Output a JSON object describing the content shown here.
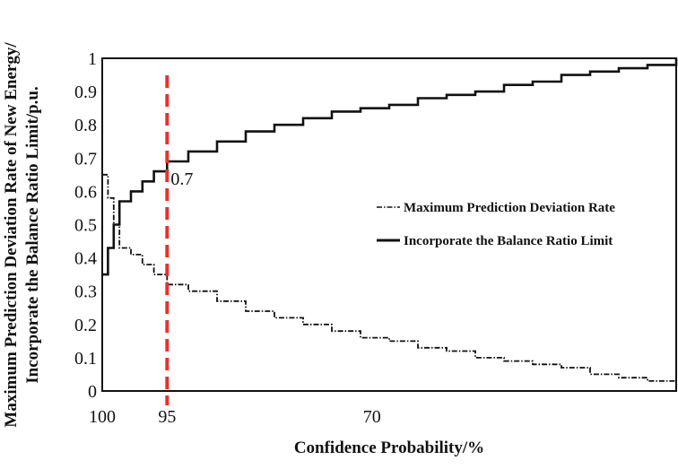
{
  "chart_data": {
    "type": "line",
    "title": "",
    "xlabel": "Confidence Probability/%",
    "ylabel": [
      "Maximum Prediction Deviation Rate of New Energy/",
      "Incorporate the Balance Ratio Limit/p.u."
    ],
    "ylim": [
      0,
      1
    ],
    "yticks": [
      "0",
      "0.1",
      "0.2",
      "0.3",
      "0.4",
      "0.5",
      "0.6",
      "0.7",
      "0.8",
      "0.9",
      "1"
    ],
    "xticks": [
      {
        "label": "100",
        "value": 0
      },
      {
        "label": "95",
        "value": 0.113
      },
      {
        "label": "70",
        "value": 0.47
      }
    ],
    "grid": false,
    "legend_position": "center-right",
    "series": [
      {
        "name": "Maximum Prediction Deviation Rate",
        "style": "dash-dot",
        "x": [
          0,
          0.01,
          0.02,
          0.03,
          0.05,
          0.07,
          0.09,
          0.113,
          0.15,
          0.2,
          0.25,
          0.3,
          0.35,
          0.4,
          0.45,
          0.5,
          0.55,
          0.6,
          0.65,
          0.7,
          0.75,
          0.8,
          0.85,
          0.9,
          0.95,
          1.0
        ],
        "values": [
          0.65,
          0.58,
          0.5,
          0.43,
          0.41,
          0.38,
          0.35,
          0.32,
          0.3,
          0.27,
          0.24,
          0.22,
          0.2,
          0.18,
          0.16,
          0.15,
          0.13,
          0.12,
          0.1,
          0.09,
          0.08,
          0.07,
          0.05,
          0.04,
          0.03,
          0.01
        ]
      },
      {
        "name": "Incorporate the Balance Ratio Limit",
        "style": "solid",
        "x": [
          0,
          0.01,
          0.02,
          0.03,
          0.05,
          0.07,
          0.09,
          0.113,
          0.15,
          0.2,
          0.25,
          0.3,
          0.35,
          0.4,
          0.45,
          0.5,
          0.55,
          0.6,
          0.65,
          0.7,
          0.75,
          0.8,
          0.85,
          0.9,
          0.95,
          1.0
        ],
        "values": [
          0.35,
          0.43,
          0.5,
          0.57,
          0.6,
          0.63,
          0.66,
          0.69,
          0.72,
          0.75,
          0.78,
          0.8,
          0.82,
          0.84,
          0.85,
          0.86,
          0.88,
          0.89,
          0.9,
          0.92,
          0.93,
          0.95,
          0.96,
          0.97,
          0.98,
          1.0
        ]
      }
    ],
    "annotations": [
      {
        "type": "vertical-dashed-line",
        "color": "#e8312f",
        "x": 0.113
      },
      {
        "type": "label",
        "text": "0.7",
        "x": 0.113,
        "y": 0.69
      }
    ]
  }
}
